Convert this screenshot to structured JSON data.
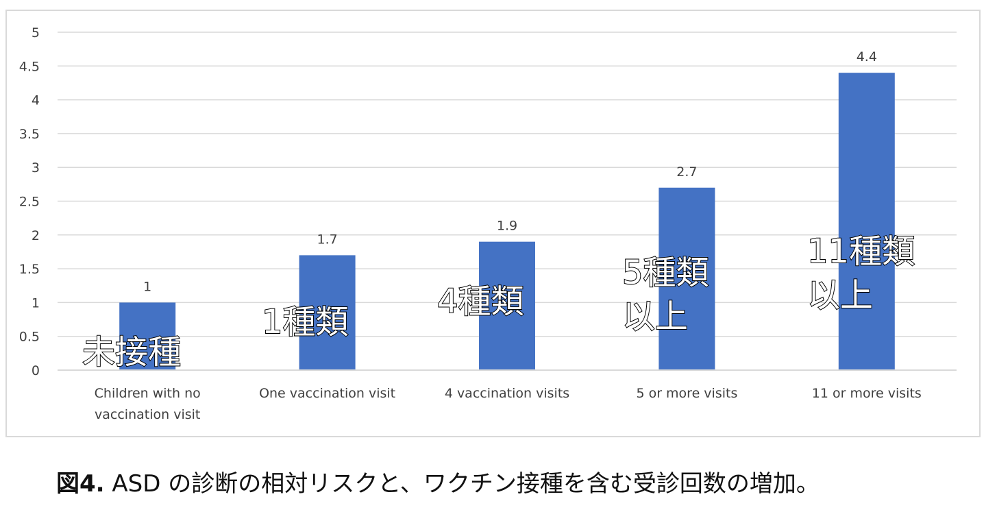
{
  "chart_data": {
    "type": "bar",
    "categories": [
      [
        "Children with no",
        "vaccination visit"
      ],
      [
        "One vaccination visit"
      ],
      [
        "4 vaccination visits"
      ],
      [
        "5 or more visits"
      ],
      [
        "11 or more visits"
      ]
    ],
    "values": [
      1,
      1.7,
      1.9,
      2.7,
      4.4
    ],
    "data_labels": [
      "1",
      "1.7",
      "1.9",
      "2.7",
      "4.4"
    ],
    "annotations": [
      [
        "未接種"
      ],
      [
        "1種類"
      ],
      [
        "4種類"
      ],
      [
        "5種類",
        "以上"
      ],
      [
        "11種類",
        "以上"
      ]
    ],
    "yticks": [
      "0",
      "0.5",
      "1",
      "1.5",
      "2",
      "2.5",
      "3",
      "3.5",
      "4",
      "4.5",
      "5"
    ],
    "ylim": [
      0,
      5
    ],
    "grid": true,
    "bar_color": "#4472c4",
    "grid_color": "#d9d9d9",
    "title": "",
    "xlabel": "",
    "ylabel": ""
  },
  "caption": {
    "label": "図4.",
    "text": " ASD の診断の相対リスクと、ワクチン接種を含む受診回数の増加。"
  }
}
